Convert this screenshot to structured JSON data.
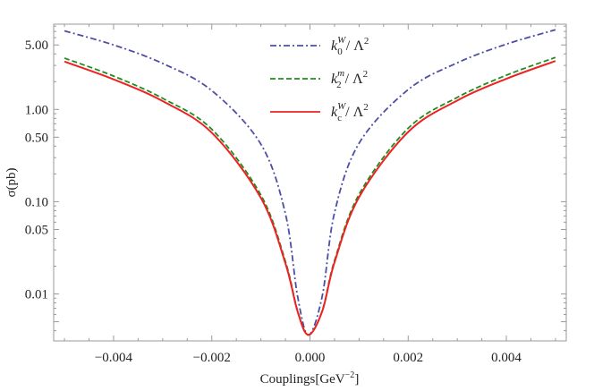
{
  "chart_data": {
    "type": "line",
    "title": "",
    "xlabel": "Couplings[GeV",
    "xlabel_sup": "−2",
    "xlabel_close": "]",
    "ylabel": "σ(pb)",
    "xlim": [
      -0.00522,
      0.00522
    ],
    "ylim": [
      0.0031,
      8.4
    ],
    "yscale": "log",
    "grid": false,
    "legend_placement": "top-center",
    "xticks": [
      -0.004,
      -0.002,
      0.0,
      0.002,
      0.004
    ],
    "xtick_labels": [
      "−0.004",
      "−0.002",
      "0.000",
      "0.002",
      "0.004"
    ],
    "yticks": [
      0.01,
      0.05,
      0.1,
      0.5,
      1.0,
      5.0
    ],
    "ytick_labels": [
      "0.01",
      "0.05",
      "0.10",
      "0.50",
      "1.00",
      "5.00"
    ],
    "x": [
      -0.005,
      -0.004,
      -0.003,
      -0.002,
      -0.001,
      -0.0005,
      -0.00025,
      -3e-05,
      0.00025,
      0.0005,
      0.001,
      0.002,
      0.003,
      0.004,
      0.005
    ],
    "series": [
      {
        "name": "k0W/Λ2",
        "label_main": "k",
        "label_sup": "W",
        "label_sub": "0",
        "label_tail": " / Λ",
        "label_tail_sup": "2",
        "color": "#4d4da6",
        "style": "dot-dash",
        "values": [
          7.1,
          5.0,
          3.15,
          1.6,
          0.42,
          0.074,
          0.0093,
          0.0036,
          0.0095,
          0.076,
          0.43,
          1.64,
          3.2,
          5.1,
          7.3
        ]
      },
      {
        "name": "k2m/Λ2",
        "label_main": "k",
        "label_sup": "m",
        "label_sub": "2",
        "label_tail": " / Λ",
        "label_tail_sup": "2",
        "color": "#1e8c1e",
        "style": "dashed",
        "values": [
          3.6,
          2.3,
          1.32,
          0.61,
          0.118,
          0.0225,
          0.0065,
          0.0036,
          0.0066,
          0.023,
          0.12,
          0.625,
          1.35,
          2.35,
          3.66
        ]
      },
      {
        "name": "kcW/Λ2",
        "label_main": "k",
        "label_sup": "W",
        "label_sub": "c",
        "label_tail": " / Λ",
        "label_tail_sup": "2",
        "color": "#ee2222",
        "style": "solid",
        "values": [
          3.3,
          2.12,
          1.23,
          0.56,
          0.11,
          0.0215,
          0.0064,
          0.0036,
          0.0065,
          0.022,
          0.112,
          0.57,
          1.25,
          2.15,
          3.35
        ]
      }
    ]
  }
}
